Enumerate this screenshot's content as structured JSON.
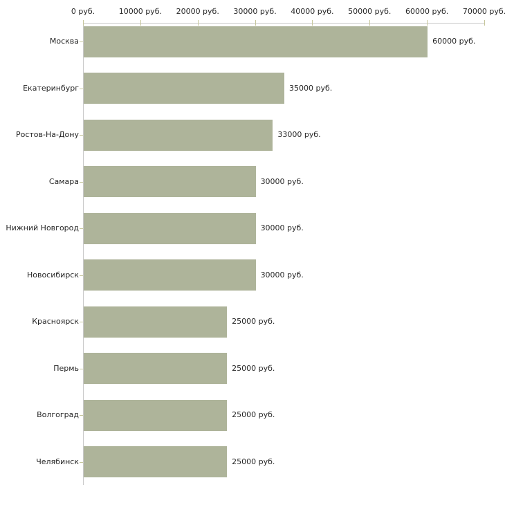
{
  "chart_data": {
    "type": "bar",
    "orientation": "horizontal",
    "title": "",
    "unit": "руб.",
    "categories": [
      "Москва",
      "Екатеринбург",
      "Ростов-На-Дону",
      "Самара",
      "Нижний Новгород",
      "Новосибирск",
      "Красноярск",
      "Пермь",
      "Волгоград",
      "Челябинск"
    ],
    "values": [
      60000,
      35000,
      33000,
      30000,
      30000,
      30000,
      25000,
      25000,
      25000,
      25000
    ],
    "value_labels": [
      "60000 руб.",
      "35000 руб.",
      "33000 руб.",
      "30000 руб.",
      "30000 руб.",
      "30000 руб.",
      "25000 руб.",
      "25000 руб.",
      "25000 руб.",
      "25000 руб."
    ],
    "x_tick_values": [
      0,
      10000,
      20000,
      30000,
      40000,
      50000,
      60000,
      70000
    ],
    "x_tick_labels": [
      "0 руб.",
      "10000 руб.",
      "20000 руб.",
      "30000 руб.",
      "40000 руб.",
      "50000 руб.",
      "60000 руб.",
      "70000 руб."
    ],
    "xlim": [
      0,
      70000
    ],
    "grid": false,
    "legend": "none",
    "colors": {
      "bar": "#aeb49a",
      "axis_line": "#c9c9c9",
      "tick_mark": "#c6c69b",
      "text": "#262626",
      "background": "#ffffff"
    }
  }
}
